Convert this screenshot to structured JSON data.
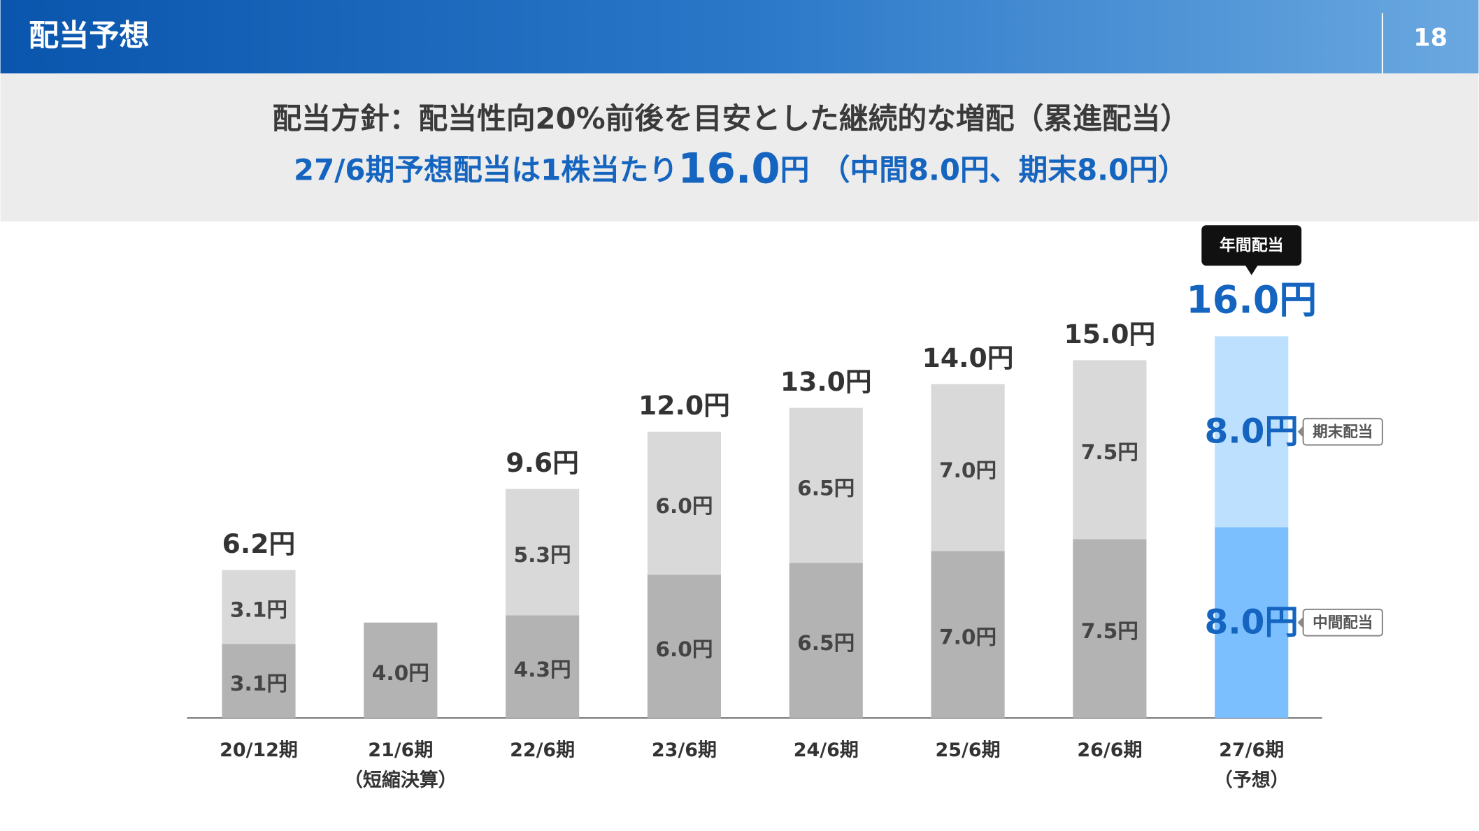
{
  "header": {
    "title": "配当予想",
    "page": "18"
  },
  "banner": {
    "line1": "配当方針：配当性向20%前後を目安とした継続的な増配（累進配当）",
    "line2": [
      "27/6期予想配当は1株当たり",
      "16.0",
      "円",
      "（中間8.0円、期末8.0円）"
    ]
  },
  "chart_data": {
    "type": "bar",
    "stacked": true,
    "categories": [
      "20/12期",
      "21/6期",
      "22/6期",
      "23/6期",
      "24/6期",
      "25/6期",
      "26/6期",
      "27/6期"
    ],
    "category_sublabels": [
      null,
      "（短縮決算）",
      null,
      null,
      null,
      null,
      null,
      "（予想）"
    ],
    "highlight_index": 7,
    "callout": "年間配当",
    "series": [
      {
        "name": "中間配当",
        "color": "#b3b3b3",
        "highlight_color": "#7bbfff",
        "values": [
          3.1,
          4.0,
          4.3,
          6.0,
          6.5,
          7.0,
          7.5,
          8.0
        ],
        "value_labels": [
          "3.1円",
          "4.0円",
          "4.3円",
          "6.0円",
          "6.5円",
          "7.0円",
          "7.5円",
          "8.0円"
        ]
      },
      {
        "name": "期末配当",
        "color": "#d9d9d9",
        "highlight_color": "#bde0ff",
        "values": [
          3.1,
          null,
          5.3,
          6.0,
          6.5,
          7.0,
          7.5,
          8.0
        ],
        "value_labels": [
          "3.1円",
          null,
          "5.3円",
          "6.0円",
          "6.5円",
          "7.0円",
          "7.5円",
          "8.0円"
        ]
      }
    ],
    "totals": {
      "values": [
        6.2,
        null,
        9.6,
        12.0,
        13.0,
        14.0,
        15.0,
        16.0
      ],
      "value_labels": [
        "6.2円",
        null,
        "9.6円",
        "12.0円",
        "13.0円",
        "14.0円",
        "15.0円",
        "16.0円"
      ]
    }
  }
}
